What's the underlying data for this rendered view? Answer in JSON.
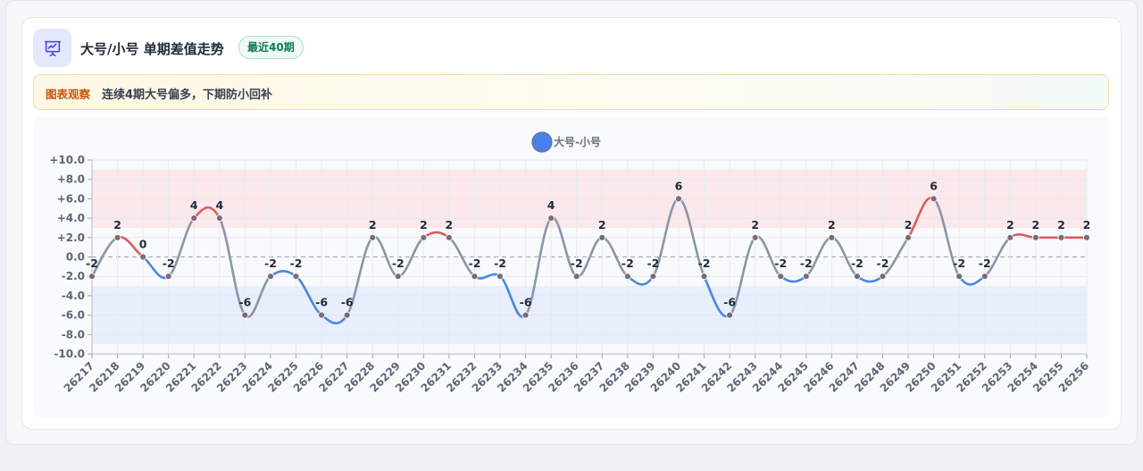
{
  "header": {
    "title": "大号/小号 单期差值走势",
    "badge": "最近40期",
    "icon": "presentation-chart-icon"
  },
  "note": {
    "label": "图表观察",
    "text": "连续4期大号偏多，下期防小回补"
  },
  "colors": {
    "positive_line": "#e05a5a",
    "negative_line": "#4d86e0",
    "neutral_line": "#8a96a8",
    "legend_dot": "#4a7ff0",
    "upper_band": "#fbe4e6",
    "lower_band": "#e5ebfb",
    "point": "#7d6a78"
  },
  "chart_data": {
    "type": "line",
    "legend": [
      "大号-小号"
    ],
    "legend_position": "top-center",
    "categories": [
      "26217",
      "26218",
      "26219",
      "26220",
      "26221",
      "26222",
      "26223",
      "26224",
      "26225",
      "26226",
      "26227",
      "26228",
      "26229",
      "26230",
      "26231",
      "26232",
      "26233",
      "26234",
      "26235",
      "26236",
      "26237",
      "26238",
      "26239",
      "26240",
      "26241",
      "26242",
      "26243",
      "26244",
      "26245",
      "26246",
      "26247",
      "26248",
      "26249",
      "26250",
      "26251",
      "26252",
      "26253",
      "26254",
      "26255",
      "26256"
    ],
    "series": [
      {
        "name": "大号-小号",
        "values": [
          -2,
          2,
          0,
          -2,
          4,
          4,
          -6,
          -2,
          -2,
          -6,
          -6,
          2,
          -2,
          2,
          2,
          -2,
          -2,
          -6,
          4,
          -2,
          2,
          -2,
          -2,
          6,
          -2,
          -6,
          2,
          -2,
          -2,
          2,
          -2,
          -2,
          2,
          6,
          -2,
          -2,
          2,
          2,
          2,
          2
        ]
      }
    ],
    "ylim": [
      -10,
      10
    ],
    "yticks": [
      10,
      8,
      6,
      4,
      2,
      0,
      -2,
      -4,
      -6,
      -8,
      -10
    ],
    "ytick_labels": [
      "+10.0",
      "+8.0",
      "+6.0",
      "+4.0",
      "+2.0",
      "0.0",
      "-2.0",
      "-4.0",
      "-6.0",
      "-8.0",
      "-10.0"
    ],
    "upper_band": [
      3,
      9
    ],
    "lower_band": [
      -9,
      -3
    ],
    "zero_line": "dashed",
    "grid": true,
    "data_labels": true
  }
}
